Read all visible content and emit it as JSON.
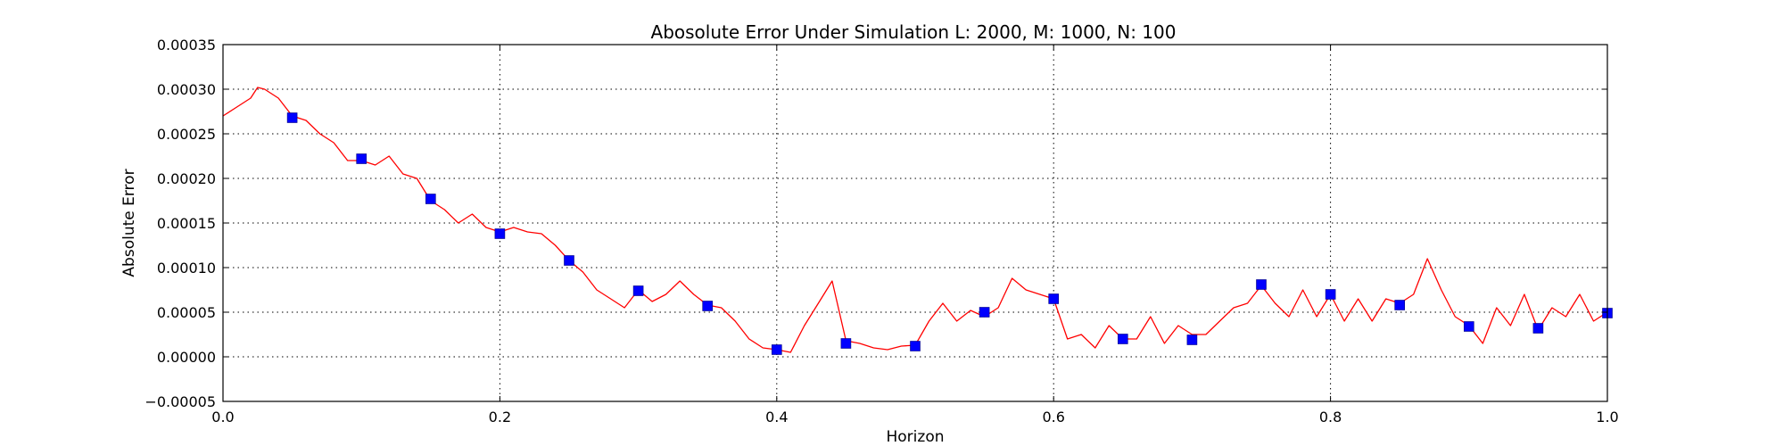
{
  "chart_data": {
    "type": "line",
    "title": "Abosolute Error Under Simulation L: 2000, M: 1000, N: 100",
    "xlabel": "Horizon",
    "ylabel": "Absolute Error",
    "xlim": [
      0.0,
      1.0
    ],
    "ylim": [
      -5e-05,
      0.00035
    ],
    "grid": true,
    "xticks": [
      "0.0",
      "0.2",
      "0.4",
      "0.6",
      "0.8",
      "1.0"
    ],
    "yticks": [
      "−0.00005",
      "0.00000",
      "0.00005",
      "0.00010",
      "0.00015",
      "0.00020",
      "0.00025",
      "0.00030",
      "0.00035"
    ],
    "series": [
      {
        "kind": "line",
        "color": "#ff0000",
        "x": [
          0.0,
          0.01,
          0.02,
          0.025,
          0.03,
          0.04,
          0.05,
          0.06,
          0.07,
          0.08,
          0.09,
          0.1,
          0.11,
          0.12,
          0.13,
          0.14,
          0.15,
          0.16,
          0.17,
          0.18,
          0.19,
          0.2,
          0.21,
          0.22,
          0.23,
          0.24,
          0.25,
          0.26,
          0.27,
          0.28,
          0.29,
          0.3,
          0.31,
          0.32,
          0.33,
          0.34,
          0.35,
          0.36,
          0.37,
          0.38,
          0.39,
          0.4,
          0.41,
          0.42,
          0.43,
          0.44,
          0.45,
          0.46,
          0.47,
          0.48,
          0.49,
          0.5,
          0.51,
          0.52,
          0.53,
          0.54,
          0.55,
          0.56,
          0.57,
          0.58,
          0.59,
          0.6,
          0.61,
          0.62,
          0.63,
          0.64,
          0.65,
          0.66,
          0.67,
          0.68,
          0.69,
          0.7,
          0.71,
          0.72,
          0.73,
          0.74,
          0.75,
          0.76,
          0.77,
          0.78,
          0.79,
          0.8,
          0.81,
          0.82,
          0.83,
          0.84,
          0.85,
          0.86,
          0.87,
          0.88,
          0.89,
          0.9,
          0.91,
          0.92,
          0.93,
          0.94,
          0.95,
          0.96,
          0.97,
          0.98,
          0.99,
          1.0
        ],
        "y": [
          0.00027,
          0.00028,
          0.00029,
          0.000302,
          0.0003,
          0.00029,
          0.00027,
          0.000265,
          0.00025,
          0.00024,
          0.00022,
          0.00022,
          0.000215,
          0.000225,
          0.000205,
          0.0002,
          0.000175,
          0.000165,
          0.00015,
          0.00016,
          0.000145,
          0.00014,
          0.000145,
          0.00014,
          0.000138,
          0.000125,
          0.000108,
          9.5e-05,
          7.5e-05,
          6.5e-05,
          5.5e-05,
          7.5e-05,
          6.2e-05,
          7e-05,
          8.5e-05,
          7e-05,
          5.8e-05,
          5.5e-05,
          4e-05,
          2e-05,
          1e-05,
          8e-06,
          5e-06,
          3.5e-05,
          6e-05,
          8.5e-05,
          1.8e-05,
          1.5e-05,
          1e-05,
          8e-06,
          1.2e-05,
          1.3e-05,
          4e-05,
          6e-05,
          4e-05,
          5.2e-05,
          4.5e-05,
          5.5e-05,
          8.8e-05,
          7.5e-05,
          7e-05,
          6.5e-05,
          2e-05,
          2.5e-05,
          1e-05,
          3.5e-05,
          2e-05,
          2e-05,
          4.5e-05,
          1.5e-05,
          3.5e-05,
          2.5e-05,
          2.5e-05,
          4e-05,
          5.5e-05,
          6e-05,
          8e-05,
          6e-05,
          4.5e-05,
          7.5e-05,
          4.5e-05,
          7e-05,
          4e-05,
          6.5e-05,
          4e-05,
          6.5e-05,
          6e-05,
          7e-05,
          0.00011,
          7.5e-05,
          4.5e-05,
          3.5e-05,
          1.5e-05,
          5.5e-05,
          3.5e-05,
          7e-05,
          3e-05,
          5.5e-05,
          4.5e-05,
          7e-05,
          4e-05,
          5e-05
        ]
      },
      {
        "kind": "markers",
        "color": "#0000ff",
        "x": [
          0.05,
          0.1,
          0.15,
          0.2,
          0.25,
          0.3,
          0.35,
          0.4,
          0.45,
          0.5,
          0.55,
          0.6,
          0.65,
          0.7,
          0.75,
          0.8,
          0.85,
          0.9,
          0.95,
          1.0
        ],
        "y": [
          0.000268,
          0.000222,
          0.000177,
          0.000138,
          0.000108,
          7.4e-05,
          5.7e-05,
          8e-06,
          1.5e-05,
          1.2e-05,
          5e-05,
          6.5e-05,
          2e-05,
          1.9e-05,
          8.1e-05,
          7e-05,
          5.8e-05,
          3.4e-05,
          3.2e-05,
          4.9e-05
        ]
      }
    ]
  }
}
